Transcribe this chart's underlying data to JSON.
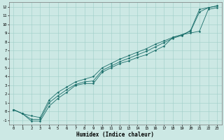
{
  "xlabel": "Humidex (Indice chaleur)",
  "bg_color": "#cce8e4",
  "line_color": "#1a6e6a",
  "xlim": [
    -0.5,
    23.5
  ],
  "ylim": [
    -1.5,
    12.5
  ],
  "xticks": [
    0,
    1,
    2,
    3,
    4,
    5,
    6,
    7,
    8,
    9,
    10,
    11,
    12,
    13,
    14,
    15,
    16,
    17,
    18,
    19,
    20,
    21,
    22,
    23
  ],
  "yticks": [
    -1,
    0,
    1,
    2,
    3,
    4,
    5,
    6,
    7,
    8,
    9,
    10,
    11,
    12
  ],
  "x_values": [
    0,
    1,
    2,
    3,
    4,
    5,
    6,
    7,
    8,
    9,
    10,
    11,
    12,
    13,
    14,
    15,
    16,
    17,
    18,
    19,
    20,
    21,
    22,
    23
  ],
  "lines": [
    [
      0.2,
      -0.25,
      -0.9,
      -0.9,
      1.0,
      1.8,
      2.5,
      3.1,
      3.4,
      3.5,
      4.7,
      5.2,
      5.7,
      6.1,
      6.5,
      6.9,
      7.4,
      7.9,
      8.4,
      8.7,
      9.3,
      11.7,
      11.9,
      12.1
    ],
    [
      0.2,
      -0.25,
      -1.1,
      -1.1,
      0.6,
      1.5,
      2.2,
      3.0,
      3.2,
      3.2,
      4.5,
      5.0,
      5.5,
      5.8,
      6.2,
      6.5,
      7.0,
      7.5,
      8.5,
      8.8,
      9.0,
      9.2,
      11.7,
      11.9
    ],
    [
      0.2,
      -0.25,
      -0.5,
      -0.7,
      1.3,
      2.2,
      2.8,
      3.4,
      3.7,
      4.0,
      5.0,
      5.5,
      6.0,
      6.4,
      6.8,
      7.2,
      7.7,
      8.1,
      8.5,
      8.8,
      9.2,
      11.4,
      11.9,
      12.1
    ]
  ],
  "grid_color": "#9ecec8",
  "tick_fontsize": 4.0,
  "xlabel_fontsize": 5.5,
  "markersize": 1.5,
  "linewidth": 0.6
}
